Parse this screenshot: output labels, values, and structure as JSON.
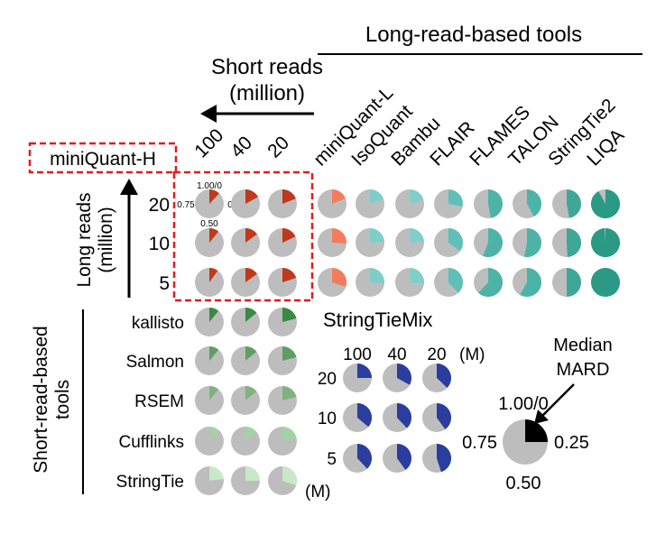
{
  "chart_data": {
    "type": "pie",
    "description_text": {
      "long_read_tools_title": "Long-read-based tools",
      "short_reads_label_line1": "Short reads",
      "short_reads_label_line2": "(million)",
      "long_reads_label_line1": "Long reads",
      "long_reads_label_line2": "(million)",
      "short_read_tools_line1": "Short-read-based",
      "short_read_tools_line2": "tools",
      "miniquant_h_label": "miniQuant-H",
      "stringtiemix_title": "StringTieMix",
      "stringtiemix_unit": "(M)",
      "bottom_unit": "(M)",
      "legend_title_line1": "Median",
      "legend_title_line2": "MARD",
      "legend_top": "1.00/0",
      "legend_right": "0.25",
      "legend_bottom": "0.50",
      "legend_left": "0.75",
      "example_top": "1.00/0",
      "example_right": "0.25",
      "example_bottom": "0.50",
      "example_left": "0.75"
    },
    "short_read_depths": [
      "100",
      "40",
      "20"
    ],
    "long_read_depths": [
      "20",
      "10",
      "5"
    ],
    "long_read_tools": [
      "miniQuant-L",
      "IsoQuant",
      "Bambu",
      "FLAIR",
      "FLAMES",
      "TALON",
      "StringTie2",
      "LIQA"
    ],
    "long_read_tool_colors": [
      "#f47c5c",
      "#7fcfc8",
      "#7fcfc8",
      "#5ec0b6",
      "#4db3a7",
      "#4db3a7",
      "#3fa796",
      "#2a9a85"
    ],
    "long_read_values": {
      "miniQuant-L": [
        0.19,
        0.26,
        0.3
      ],
      "IsoQuant": [
        0.2,
        0.24,
        0.27
      ],
      "Bambu": [
        0.2,
        0.24,
        0.27
      ],
      "FLAIR": [
        0.28,
        0.35,
        0.38
      ],
      "FLAMES": [
        0.47,
        0.56,
        0.62
      ],
      "TALON": [
        0.42,
        0.53,
        0.58
      ],
      "StringTie2": [
        0.47,
        0.49,
        0.5
      ],
      "LIQA": [
        0.92,
        0.99,
        1.0
      ]
    },
    "miniquant_h_color": "#c0391b",
    "miniquant_h_values": [
      [
        0.12,
        0.17,
        0.19
      ],
      [
        0.11,
        0.15,
        0.18
      ],
      [
        0.1,
        0.15,
        0.2
      ]
    ],
    "short_read_tools": [
      "kallisto",
      "Salmon",
      "RSEM",
      "Cufflinks",
      "StringTie"
    ],
    "short_read_tool_colors": [
      "#3a8a3f",
      "#5f9e63",
      "#7fb27f",
      "#a3d3a3",
      "#c8e8c8"
    ],
    "short_read_values": {
      "kallisto": [
        0.11,
        0.14,
        0.21
      ],
      "Salmon": [
        0.11,
        0.14,
        0.21
      ],
      "RSEM": [
        0.11,
        0.14,
        0.21
      ],
      "Cufflinks": [
        0.11,
        0.14,
        0.22
      ],
      "StringTie": [
        0.23,
        0.25,
        0.3
      ]
    },
    "stringtiemix_color": "#2b3d9e",
    "stringtiemix_values": [
      [
        0.25,
        0.33,
        0.37
      ],
      [
        0.36,
        0.38,
        0.4
      ],
      [
        0.38,
        0.4,
        0.45
      ]
    ],
    "legend_color": "#000000",
    "legend_value": 0.25,
    "background_color": "#bdbdbd",
    "highlight_box_color": "#e41a1c"
  }
}
